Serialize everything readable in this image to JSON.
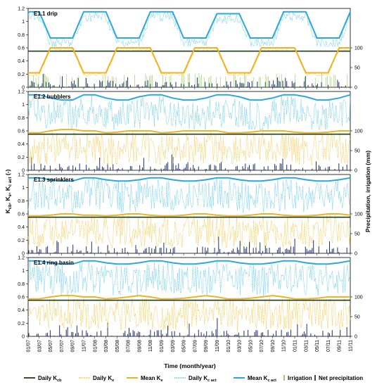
{
  "chart_data": {
    "type": "line",
    "xlabel": "Time (month/year)",
    "ylabel_left": "Kcb, Ke, Kc act (-)",
    "ylabel_right": "Precipitation, irrigation (mm)",
    "x_ticks": [
      "01/07",
      "03/07",
      "05/07",
      "07/07",
      "09/07",
      "11/07",
      "01/08",
      "03/08",
      "05/08",
      "07/08",
      "09/08",
      "11/08",
      "01/09",
      "03/09",
      "05/09",
      "07/09",
      "09/09",
      "11/09",
      "01/10",
      "03/10",
      "05/10",
      "07/10",
      "09/10",
      "11/10",
      "01/11",
      "03/11",
      "05/11",
      "07/11",
      "09/11",
      "11/11"
    ],
    "y_left_ticks": [
      "0",
      "0.2",
      "0.4",
      "0.6",
      "0.8",
      "1",
      "1.2"
    ],
    "y_left_range": [
      0,
      1.2
    ],
    "y_right_ticks": [
      "0",
      "50",
      "100"
    ],
    "y_right_range": [
      0,
      100
    ],
    "panels": [
      {
        "title": "E1.1 drip",
        "kcb": 0.55,
        "mean_ke": [
          0.22,
          0.22,
          0.6,
          0.6,
          0.6,
          0.22,
          0.22,
          0.22,
          0.6,
          0.6,
          0.6,
          0.6,
          0.22,
          0.22,
          0.22,
          0.6,
          0.6,
          0.6,
          0.22,
          0.22,
          0.22,
          0.6,
          0.6,
          0.6,
          0.6,
          0.22,
          0.22,
          0.22,
          0.6,
          0.6
        ],
        "mean_kc_act": [
          1.15,
          1.15,
          0.75,
          0.75,
          0.75,
          1.15,
          1.15,
          1.15,
          0.75,
          0.75,
          0.75,
          1.15,
          1.15,
          1.15,
          0.75,
          0.75,
          0.75,
          1.12,
          1.12,
          1.12,
          0.75,
          0.75,
          0.75,
          1.15,
          1.15,
          1.15,
          0.75,
          0.75,
          0.75,
          1.15
        ]
      },
      {
        "title": "E1.2 bubblers",
        "kcb": 0.55,
        "mean_ke": [
          0.57,
          0.57,
          0.6,
          0.62,
          0.62,
          0.6,
          0.6,
          0.57,
          0.58,
          0.6,
          0.6,
          0.6,
          0.57,
          0.58,
          0.6,
          0.6,
          0.6,
          0.6,
          0.57,
          0.57,
          0.58,
          0.6,
          0.6,
          0.6,
          0.58,
          0.57,
          0.57,
          0.58,
          0.6,
          0.6
        ],
        "mean_kc_act": [
          1.15,
          1.15,
          1.1,
          1.07,
          1.07,
          1.15,
          1.15,
          1.1,
          1.07,
          1.07,
          1.12,
          1.15,
          1.15,
          1.1,
          1.07,
          1.07,
          1.1,
          1.15,
          1.15,
          1.12,
          1.07,
          1.07,
          1.1,
          1.15,
          1.15,
          1.12,
          1.07,
          1.07,
          1.1,
          1.15
        ]
      },
      {
        "title": "E1.3 sprinklers",
        "kcb": 0.55,
        "mean_ke": [
          0.57,
          0.57,
          0.58,
          0.6,
          0.6,
          0.58,
          0.58,
          0.57,
          0.58,
          0.6,
          0.6,
          0.58,
          0.57,
          0.57,
          0.58,
          0.6,
          0.6,
          0.58,
          0.57,
          0.57,
          0.58,
          0.6,
          0.6,
          0.58,
          0.57,
          0.57,
          0.58,
          0.6,
          0.6,
          0.58
        ],
        "mean_kc_act": [
          1.15,
          1.15,
          1.12,
          1.1,
          1.1,
          1.15,
          1.15,
          1.12,
          1.1,
          1.1,
          1.12,
          1.15,
          1.15,
          1.12,
          1.1,
          1.1,
          1.12,
          1.15,
          1.15,
          1.12,
          1.1,
          1.1,
          1.12,
          1.15,
          1.15,
          1.12,
          1.1,
          1.1,
          1.12,
          1.15
        ]
      },
      {
        "title": "E1.4 ring basin",
        "kcb": 0.55,
        "mean_ke": [
          0.57,
          0.57,
          0.6,
          0.62,
          0.62,
          0.6,
          0.6,
          0.57,
          0.58,
          0.6,
          0.62,
          0.6,
          0.57,
          0.57,
          0.58,
          0.6,
          0.62,
          0.6,
          0.57,
          0.57,
          0.58,
          0.6,
          0.62,
          0.6,
          0.57,
          0.57,
          0.58,
          0.6,
          0.6,
          0.6
        ],
        "mean_kc_act": [
          1.15,
          1.15,
          1.12,
          1.1,
          1.1,
          1.15,
          1.15,
          1.12,
          1.1,
          1.1,
          1.12,
          1.15,
          1.15,
          1.12,
          1.1,
          1.1,
          1.12,
          1.15,
          1.15,
          1.12,
          1.1,
          1.1,
          1.12,
          1.15,
          1.15,
          1.12,
          1.1,
          1.1,
          1.12,
          1.15
        ]
      }
    ],
    "legend": [
      "Daily Kcb",
      "Daily Ke",
      "Mean Ke",
      "Daily Kc act",
      "Mean Kc act",
      "Irrigation",
      "Net precipitation"
    ],
    "colors": {
      "kcb": "#1f3d1a",
      "daily_ke": "#f4c542",
      "mean_ke": "#f0b21e",
      "daily_kc": "#5bc8ec",
      "mean_kc": "#2aa8dc",
      "irrigation": "#8fcc5a",
      "precipitation": "#1f2f6b"
    }
  }
}
